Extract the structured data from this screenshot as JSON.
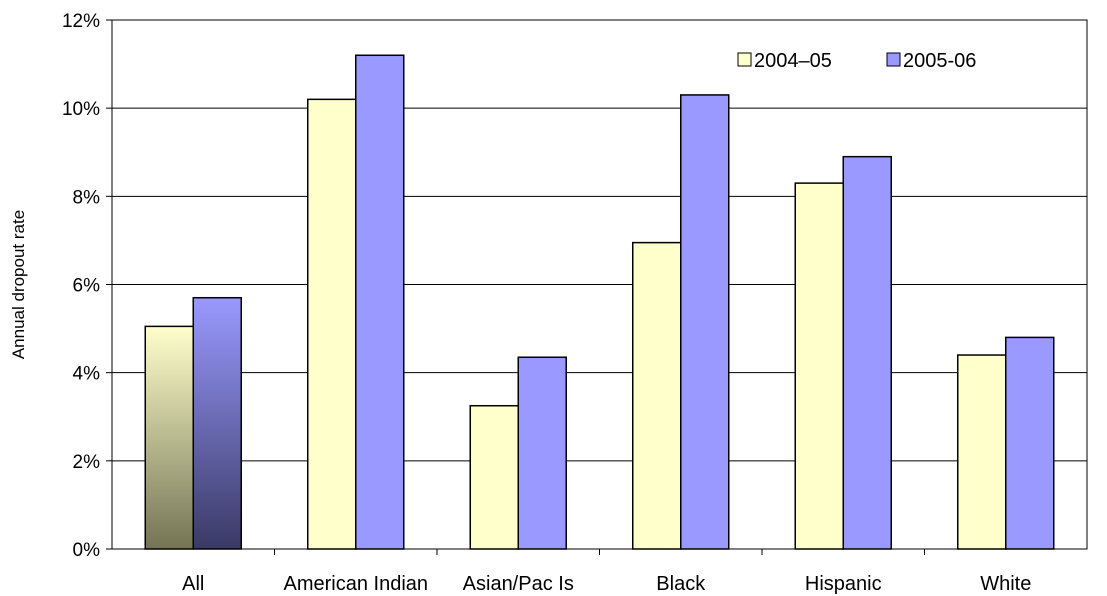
{
  "chart_data": {
    "type": "bar",
    "title": "",
    "xlabel": "",
    "ylabel": "Annual dropout rate",
    "ylim": [
      0,
      12
    ],
    "yticks": [
      "0%",
      "2%",
      "4%",
      "6%",
      "8%",
      "10%",
      "12%"
    ],
    "grid": "horizontal",
    "legend_position": "top-right",
    "categories": [
      "All",
      "American Indian",
      "Asian/Pac Is",
      "Black",
      "Hispanic",
      "White"
    ],
    "series": [
      {
        "name": "2004–05",
        "values": [
          5.05,
          10.2,
          3.25,
          6.95,
          8.3,
          4.4
        ],
        "color": "#ffffcc"
      },
      {
        "name": "2005-06",
        "values": [
          5.7,
          11.2,
          4.35,
          10.3,
          8.9,
          4.8
        ],
        "color": "#9999ff"
      }
    ]
  },
  "partial_heading": ""
}
